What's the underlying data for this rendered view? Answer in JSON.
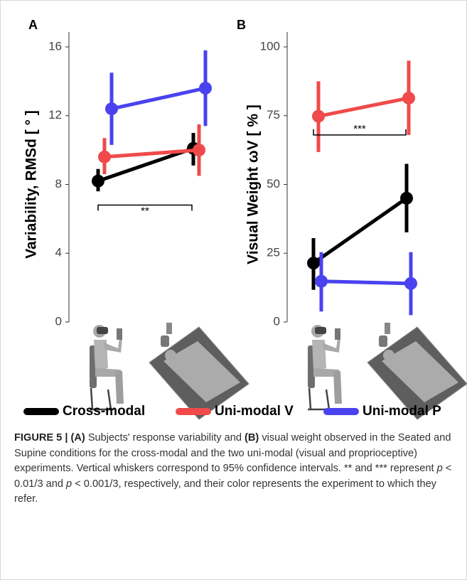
{
  "chart_data": [
    {
      "type": "line",
      "panel": "A",
      "y_label": "Variability, RMSd [ ° ]",
      "categories": [
        null,
        null
      ],
      "ylim": [
        0,
        16
      ],
      "yticks": [
        0,
        4,
        8,
        12,
        16
      ],
      "series": [
        {
          "name": "Cross-modal",
          "color": "#000000",
          "values": [
            8.2,
            10.1
          ],
          "ci_low": [
            7.6,
            9.1
          ],
          "ci_high": [
            8.9,
            11.0
          ]
        },
        {
          "name": "Uni-modal V",
          "color": "#f04a4a",
          "values": [
            9.6,
            10.0
          ],
          "ci_low": [
            8.6,
            8.5
          ],
          "ci_high": [
            10.7,
            11.5
          ]
        },
        {
          "name": "Uni-modal P",
          "color": "#4a42ef",
          "values": [
            12.4,
            13.6
          ],
          "ci_low": [
            10.3,
            11.4
          ],
          "ci_high": [
            14.5,
            15.8
          ]
        }
      ],
      "annotations": [
        {
          "text": "**",
          "y": 6.8,
          "color": "#000000"
        }
      ]
    },
    {
      "type": "line",
      "panel": "B",
      "y_label": "Visual Weight ωV [ % ]",
      "categories": [
        null,
        null
      ],
      "ylim": [
        0,
        100
      ],
      "yticks": [
        0,
        25,
        50,
        75,
        100
      ],
      "series": [
        {
          "name": "Cross-modal",
          "color": "#000000",
          "values": [
            21.4,
            45.0
          ],
          "ci_low": [
            11.7,
            32.6
          ],
          "ci_high": [
            30.5,
            57.5
          ]
        },
        {
          "name": "Uni-modal V",
          "color": "#f04a4a",
          "values": [
            74.8,
            81.4
          ],
          "ci_low": [
            61.8,
            68.0
          ],
          "ci_high": [
            87.5,
            95.0
          ]
        },
        {
          "name": "Uni-modal P",
          "color": "#4a42ef",
          "values": [
            14.8,
            14.0
          ],
          "ci_low": [
            3.8,
            2.5
          ],
          "ci_high": [
            25.4,
            25.4
          ]
        }
      ],
      "annotations": [
        {
          "text": "***",
          "y": 68,
          "color": "#000000"
        }
      ]
    }
  ],
  "caption": [
    {
      "text": "FIGURE 5 | ",
      "bold": true
    },
    {
      "text": "(A)",
      "bold": true
    },
    {
      "text": " Subjects' response variability and "
    },
    {
      "text": "(B)",
      "bold": true
    },
    {
      "text": " visual weight observed in the Seated and Supine conditions for the cross-modal and the two uni-modal (visual and proprioceptive) experiments. Vertical whiskers correspond to 95% confidence intervals. ** and *** represent "
    },
    {
      "text": "p",
      "italic": true
    },
    {
      "text": " < 0.01/3 and "
    },
    {
      "text": "p",
      "italic": true
    },
    {
      "text": " < 0.001/3, respectively, and their color represents the experiment to which they refer."
    }
  ]
}
